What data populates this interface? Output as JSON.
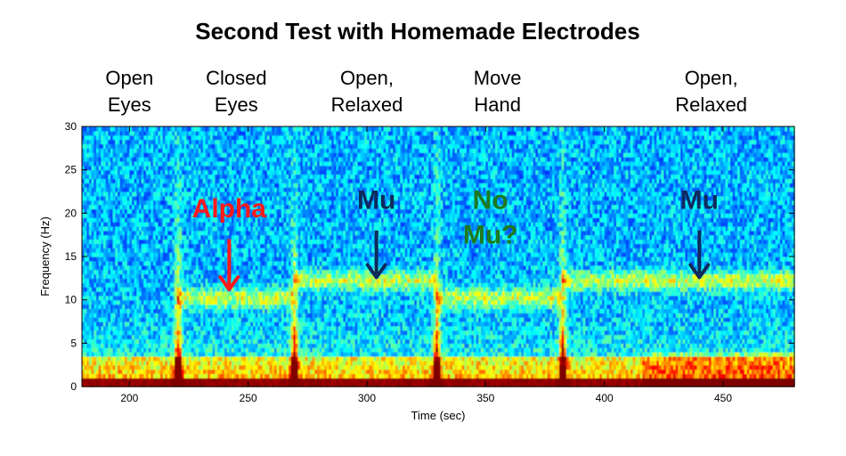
{
  "chart_data": {
    "type": "heatmap",
    "title": "Second Test with Homemade Electrodes",
    "xlabel": "Time (sec)",
    "ylabel": "Frequency (Hz)",
    "xlim": [
      180,
      480
    ],
    "ylim": [
      0,
      30
    ],
    "x_ticks": [
      200,
      250,
      300,
      350,
      400,
      450
    ],
    "y_ticks": [
      0,
      5,
      10,
      15,
      20,
      25,
      30
    ],
    "colormap": "jet",
    "conditions": [
      {
        "lines": [
          "Open",
          "Eyes"
        ],
        "x": 200
      },
      {
        "lines": [
          "Closed",
          "Eyes"
        ],
        "x": 245
      },
      {
        "lines": [
          "Open,",
          "Relaxed"
        ],
        "x": 300
      },
      {
        "lines": [
          "Move",
          "Hand"
        ],
        "x": 355
      },
      {
        "lines": [
          "Open,",
          "Relaxed"
        ],
        "x": 445
      }
    ],
    "transitions_sec": [
      220,
      269,
      329,
      382
    ],
    "bands": [
      {
        "x_start": 220,
        "x_end": 269,
        "freq_hz": 10
      },
      {
        "x_start": 269,
        "x_end": 329,
        "freq_hz": 12
      },
      {
        "x_start": 329,
        "x_end": 382,
        "freq_hz": 10
      },
      {
        "x_start": 382,
        "x_end": 480,
        "freq_hz": 12
      }
    ],
    "annotations": [
      {
        "text": "Alpha",
        "x": 242,
        "y": 19.5,
        "color": "#ff1a1a",
        "arrow": true,
        "arrow_from": 17,
        "arrow_to": 11.2
      },
      {
        "text": "Mu",
        "x": 304,
        "y": 20.5,
        "color": "#0f2a5c",
        "arrow": true,
        "arrow_from": 18,
        "arrow_to": 12.6
      },
      {
        "text": "No",
        "x": 352,
        "y": 20.5,
        "color": "#1e7a1e",
        "arrow": false
      },
      {
        "text": "Mu?",
        "x": 352,
        "y": 16.5,
        "color": "#1e7a1e",
        "arrow": false
      },
      {
        "text": "Mu",
        "x": 440,
        "y": 20.5,
        "color": "#0f2a5c",
        "arrow": true,
        "arrow_from": 18,
        "arrow_to": 12.6
      }
    ]
  }
}
